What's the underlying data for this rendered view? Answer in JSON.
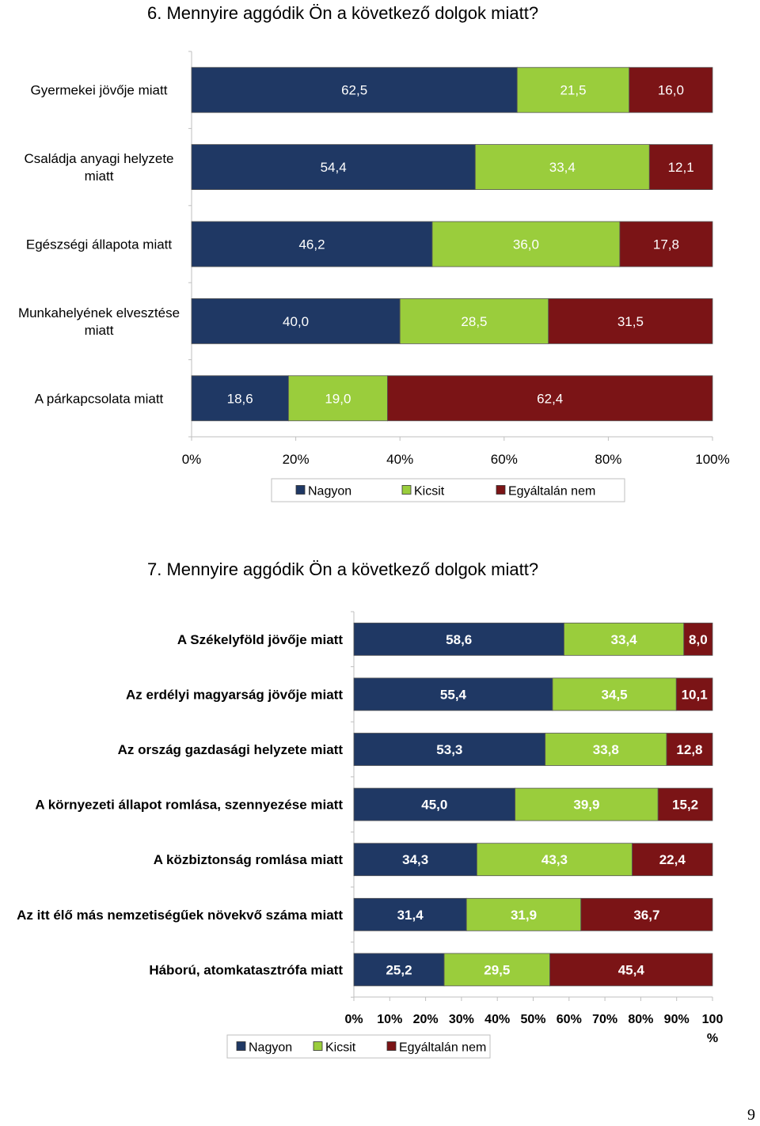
{
  "page_number": "9",
  "sections": [
    {
      "title": "6. Mennyire aggódik Ön a következő dolgok miatt?"
    },
    {
      "title": "7. Mennyire aggódik Ön a következő dolgok miatt?"
    }
  ],
  "colors": {
    "nagyon": "#1f3864",
    "kicsit": "#9acd3c",
    "egyaltalan": "#7b1416"
  },
  "chart_data": [
    {
      "type": "bar",
      "orientation": "horizontal",
      "stacked": true,
      "percent_stacked": true,
      "categories": [
        [
          "Gyermekei jövője miatt"
        ],
        [
          "Családja anyagi helyzete",
          "miatt"
        ],
        [
          "Egészségi állapota miatt"
        ],
        [
          "Munkahelyének elvesztése",
          "miatt"
        ],
        [
          "A párkapcsolata miatt"
        ]
      ],
      "series": [
        {
          "name": "Nagyon",
          "values": [
            "62,5",
            "54,4",
            "46,2",
            "40,0",
            "18,6"
          ]
        },
        {
          "name": "Kicsit",
          "values": [
            "21,5",
            "33,4",
            "36,0",
            "28,5",
            "19,0"
          ]
        },
        {
          "name": "Egyáltalán nem",
          "values": [
            "16,0",
            "12,1",
            "17,8",
            "31,5",
            "62,4"
          ]
        }
      ],
      "x_ticks": [
        "0%",
        "20%",
        "40%",
        "60%",
        "80%",
        "100%"
      ],
      "xlim": [
        0,
        100
      ],
      "legend_position": "bottom"
    },
    {
      "type": "bar",
      "orientation": "horizontal",
      "stacked": true,
      "percent_stacked": true,
      "categories": [
        [
          "A Székelyföld jövője miatt"
        ],
        [
          "Az erdélyi magyarság jövője miatt"
        ],
        [
          "Az ország gazdasági helyzete miatt"
        ],
        [
          "A környezeti állapot romlása, szennyezése miatt"
        ],
        [
          "A közbiztonság romlása miatt"
        ],
        [
          "Az itt élő más nemzetiségűek növekvő száma miatt"
        ],
        [
          "Háború, atomkatasztrófa miatt"
        ]
      ],
      "series": [
        {
          "name": "Nagyon",
          "values": [
            "58,6",
            "55,4",
            "53,3",
            "45,0",
            "34,3",
            "31,4",
            "25,2"
          ]
        },
        {
          "name": "Kicsit",
          "values": [
            "33,4",
            "34,5",
            "33,8",
            "39,9",
            "43,3",
            "31,9",
            "29,5"
          ]
        },
        {
          "name": "Egyáltalán nem",
          "values": [
            "8,0",
            "10,1",
            "12,8",
            "15,2",
            "22,4",
            "36,7",
            "45,4"
          ]
        }
      ],
      "x_ticks": [
        "0%",
        "10%",
        "20%",
        "30%",
        "40%",
        "50%",
        "60%",
        "70%",
        "80%",
        "90%",
        "100%"
      ],
      "xlim": [
        0,
        100
      ],
      "legend_position": "bottom-left"
    }
  ]
}
